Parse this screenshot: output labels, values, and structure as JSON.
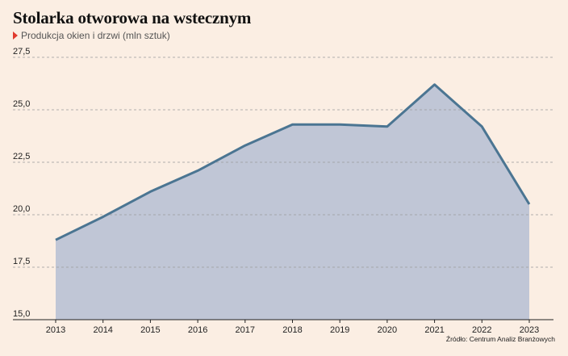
{
  "title": "Stolarka otworowa na wstecznym",
  "subtitle": "Produkcja okien i drzwi (mln sztuk)",
  "source": "Źródło: Centrum Analiz Branżowych",
  "colors": {
    "background": "#fbeee3",
    "area_fill": "#c0c6d6",
    "line": "#4b7592",
    "marker": "#e03a2e",
    "grid": "#9a9a9a"
  },
  "chart_data": {
    "type": "area",
    "title": "Stolarka otworowa na wstecznym",
    "subtitle": "Produkcja okien i drzwi (mln sztuk)",
    "x": [
      "2013",
      "2014",
      "2015",
      "2016",
      "2017",
      "2018",
      "2019",
      "2020",
      "2021",
      "2022",
      "2023"
    ],
    "series": [
      {
        "values": [
          18.8,
          19.9,
          21.1,
          22.1,
          23.3,
          24.3,
          24.3,
          24.2,
          26.2,
          24.2,
          20.5
        ]
      }
    ],
    "ylim": [
      15,
      27.5
    ],
    "yticks": [
      "15,0",
      "17,5",
      "20,0",
      "22,5",
      "25,0",
      "27,5"
    ],
    "ytick_values": [
      15,
      17.5,
      20,
      22.5,
      25,
      27.5
    ],
    "grid": true
  }
}
